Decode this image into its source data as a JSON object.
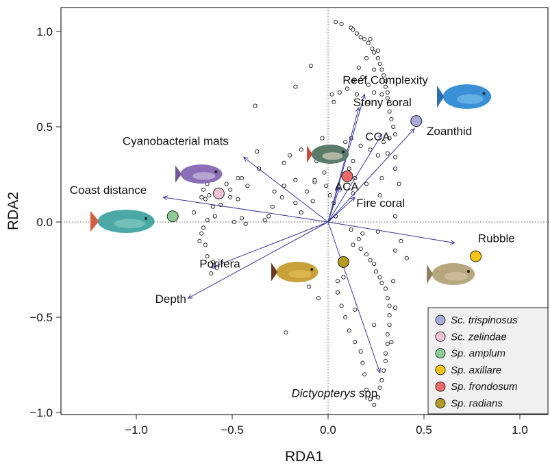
{
  "chart_data": {
    "type": "scatter",
    "title": "",
    "xlabel": "RDA1",
    "ylabel": "RDA2",
    "xlim": [
      -1.37,
      1.14
    ],
    "ylim": [
      -1.07,
      1.12
    ],
    "xticks": [
      -1.0,
      -0.5,
      0.0,
      0.5,
      1.0
    ],
    "yticks": [
      -1.0,
      -0.5,
      0.0,
      0.5,
      1.0
    ],
    "xtick_labels": [
      "−1.0",
      "−0.5",
      "0.0",
      "0.5",
      "1.0"
    ],
    "ytick_labels": [
      "−1.0",
      "−0.5",
      "0.0",
      "0.5",
      "1.0"
    ],
    "reference_lines": {
      "x": 0,
      "y": 0,
      "style": "dotted"
    },
    "vector_color": "#33339a",
    "vectors": [
      {
        "label": "Reef Complexity",
        "x": 0.19,
        "y": 0.67,
        "italic_part": "",
        "rest": ""
      },
      {
        "label": "Stony coral",
        "x": 0.16,
        "y": 0.6,
        "italic_part": "",
        "rest": ""
      },
      {
        "label": "CCA",
        "x": 0.28,
        "y": 0.46,
        "italic_part": "",
        "rest": ""
      },
      {
        "label": "Zoanthid",
        "x": 0.45,
        "y": 0.49,
        "italic_part": "",
        "rest": ""
      },
      {
        "label": "Cyanobacterial mats",
        "x": -0.44,
        "y": 0.34,
        "italic_part": "",
        "rest": ""
      },
      {
        "label": "Coast distance",
        "x": -0.86,
        "y": 0.13,
        "italic_part": "",
        "rest": ""
      },
      {
        "label": "ACA",
        "x": 0.06,
        "y": 0.18,
        "italic_part": "",
        "rest": ""
      },
      {
        "label": "Fire coral",
        "x": 0.14,
        "y": 0.13,
        "italic_part": "",
        "rest": ""
      },
      {
        "label": "Rubble",
        "x": 0.66,
        "y": -0.11,
        "italic_part": "",
        "rest": ""
      },
      {
        "label": "Porifera",
        "x": -0.61,
        "y": -0.24,
        "italic_part": "",
        "rest": ""
      },
      {
        "label": "Depth",
        "x": -0.73,
        "y": -0.4,
        "italic_part": "",
        "rest": ""
      },
      {
        "label": "Dictyopterys spp.",
        "x": 0.27,
        "y": -0.79,
        "italic_part": "Dictyopterys",
        "rest": " spp."
      }
    ],
    "species": [
      {
        "name": "Sc. trispinosus",
        "x": 0.46,
        "y": 0.53,
        "color": "#a7a9d6"
      },
      {
        "name": "Sc. zelindae",
        "x": -0.57,
        "y": 0.15,
        "color": "#edc3d5"
      },
      {
        "name": "Sp. amplum",
        "x": -0.81,
        "y": 0.03,
        "color": "#8fcc95"
      },
      {
        "name": "Sp. axillare",
        "x": 0.77,
        "y": -0.18,
        "color": "#f6c412"
      },
      {
        "name": "Sp. frondosum",
        "x": 0.1,
        "y": 0.24,
        "color": "#ec6a68"
      },
      {
        "name": "Sp. radians",
        "x": 0.08,
        "y": -0.21,
        "color": "#b39a23"
      }
    ],
    "sites": [
      [
        0.04,
        1.05
      ],
      [
        0.07,
        1.04
      ],
      [
        0.12,
        1.02
      ],
      [
        0.13,
        1.01
      ],
      [
        0.15,
        0.99
      ],
      [
        0.17,
        0.97
      ],
      [
        0.19,
        0.96
      ],
      [
        0.21,
        0.94
      ],
      [
        0.23,
        0.91
      ],
      [
        0.24,
        0.89
      ],
      [
        0.26,
        0.86
      ],
      [
        0.27,
        0.83
      ],
      [
        0.28,
        0.8
      ],
      [
        0.29,
        0.77
      ],
      [
        0.3,
        0.74
      ],
      [
        0.3,
        0.71
      ],
      [
        0.31,
        0.68
      ],
      [
        0.31,
        0.65
      ],
      [
        0.32,
        0.62
      ],
      [
        0.32,
        0.58
      ],
      [
        0.33,
        0.54
      ],
      [
        0.34,
        0.5
      ],
      [
        0.35,
        0.46
      ],
      [
        0.22,
        0.96
      ],
      [
        0.26,
        0.9
      ],
      [
        0.2,
        0.86
      ],
      [
        0.24,
        0.8
      ],
      [
        0.16,
        0.81
      ],
      [
        0.18,
        0.76
      ],
      [
        0.21,
        0.72
      ],
      [
        0.13,
        0.74
      ],
      [
        0.1,
        0.7
      ],
      [
        0.15,
        0.67
      ],
      [
        0.06,
        0.68
      ],
      [
        0.02,
        0.67
      ],
      [
        0.03,
        0.63
      ],
      [
        0.21,
        0.63
      ],
      [
        0.24,
        0.68
      ],
      [
        0.28,
        0.67
      ],
      [
        0.32,
        0.44
      ],
      [
        0.29,
        0.42
      ],
      [
        0.31,
        0.36
      ],
      [
        0.35,
        0.34
      ],
      [
        0.26,
        0.35
      ],
      [
        0.22,
        0.38
      ],
      [
        0.17,
        0.4
      ],
      [
        0.12,
        0.44
      ],
      [
        0.09,
        0.42
      ],
      [
        0.07,
        0.38
      ],
      [
        0.13,
        0.32
      ],
      [
        0.11,
        0.28
      ],
      [
        -0.09,
        0.82
      ],
      [
        -0.17,
        0.71
      ],
      [
        -0.38,
        0.61
      ],
      [
        -0.03,
        0.44
      ],
      [
        -0.04,
        0.36
      ],
      [
        -0.06,
        0.32
      ],
      [
        0.14,
        0.23
      ],
      [
        0.2,
        0.2
      ],
      [
        0.13,
        0.15
      ],
      [
        0.27,
        0.14
      ],
      [
        0.03,
        0.1
      ],
      [
        -0.08,
        0.11
      ],
      [
        -0.14,
        0.05
      ],
      [
        -0.17,
        0.1
      ],
      [
        -0.11,
        0.16
      ],
      [
        -0.07,
        0.21
      ],
      [
        -0.07,
        0.22
      ],
      [
        -0.17,
        0.22
      ],
      [
        -0.23,
        0.19
      ],
      [
        -0.24,
        0.13
      ],
      [
        -0.28,
        0.16
      ],
      [
        -0.29,
        0.08
      ],
      [
        -0.31,
        0.03
      ],
      [
        -0.33,
        0.01
      ],
      [
        -0.43,
        -0.01
      ],
      [
        -0.45,
        0.02
      ],
      [
        -0.49,
        0.0
      ],
      [
        -0.47,
        0.12
      ],
      [
        -0.51,
        0.13
      ],
      [
        -0.51,
        0.17
      ],
      [
        -0.47,
        0.23
      ],
      [
        -0.53,
        0.2
      ],
      [
        -0.58,
        0.24
      ],
      [
        -0.6,
        0.22
      ],
      [
        -0.63,
        0.2
      ],
      [
        -0.65,
        0.17
      ],
      [
        -0.66,
        0.13
      ],
      [
        -0.62,
        0.14
      ],
      [
        -0.64,
        0.12
      ],
      [
        -0.6,
        0.08
      ],
      [
        -0.59,
        0.03
      ],
      [
        -0.63,
        0.01
      ],
      [
        -0.65,
        -0.03
      ],
      [
        -0.66,
        -0.06
      ],
      [
        -0.67,
        -0.1
      ],
      [
        -0.64,
        -0.12
      ],
      [
        -0.63,
        -0.18
      ],
      [
        -0.6,
        -0.21
      ],
      [
        -0.58,
        -0.24
      ],
      [
        -0.61,
        -0.27
      ],
      [
        -0.56,
        0.09
      ],
      [
        -0.7,
        0.05
      ],
      [
        -0.37,
        0.37
      ],
      [
        -0.36,
        0.28
      ],
      [
        -0.45,
        0.23
      ],
      [
        -0.42,
        0.19
      ],
      [
        -0.23,
        0.31
      ],
      [
        -0.14,
        0.38
      ],
      [
        -0.2,
        0.35
      ],
      [
        -0.02,
        0.26
      ],
      [
        -0.01,
        0.19
      ],
      [
        0.01,
        0.14
      ],
      [
        0.04,
        0.03
      ],
      [
        0.12,
        -0.04
      ],
      [
        0.16,
        -0.09
      ],
      [
        0.13,
        -0.12
      ],
      [
        0.17,
        -0.14
      ],
      [
        0.2,
        -0.17
      ],
      [
        0.22,
        -0.2
      ],
      [
        0.24,
        -0.22
      ],
      [
        0.25,
        -0.26
      ],
      [
        0.27,
        -0.29
      ],
      [
        0.28,
        -0.32
      ],
      [
        0.3,
        -0.35
      ],
      [
        0.31,
        -0.4
      ],
      [
        0.32,
        -0.44
      ],
      [
        0.32,
        -0.49
      ],
      [
        0.32,
        -0.54
      ],
      [
        0.31,
        -0.59
      ],
      [
        0.31,
        -0.64
      ],
      [
        0.3,
        -0.69
      ],
      [
        0.3,
        -0.73
      ],
      [
        0.29,
        -0.78
      ],
      [
        0.28,
        -0.83
      ],
      [
        0.27,
        -0.87
      ],
      [
        0.26,
        -0.92
      ],
      [
        0.24,
        -0.96
      ],
      [
        0.22,
        -0.93
      ],
      [
        0.2,
        -0.88
      ],
      [
        0.19,
        -0.8
      ],
      [
        0.18,
        -0.74
      ],
      [
        0.17,
        -0.68
      ],
      [
        0.14,
        -0.63
      ],
      [
        0.11,
        -0.57
      ],
      [
        0.09,
        -0.5
      ],
      [
        0.07,
        -0.44
      ],
      [
        0.05,
        -0.37
      ],
      [
        0.05,
        -0.31
      ],
      [
        0.08,
        -0.29
      ],
      [
        0.18,
        -0.06
      ],
      [
        0.26,
        -0.05
      ],
      [
        0.38,
        -0.1
      ],
      [
        0.41,
        -0.19
      ],
      [
        0.35,
        -0.15
      ],
      [
        -0.05,
        -0.4
      ],
      [
        -0.1,
        -0.34
      ],
      [
        -0.13,
        -0.26
      ],
      [
        -0.22,
        -0.58
      ],
      [
        0.14,
        -0.46
      ],
      [
        0.24,
        -0.54
      ],
      [
        0.33,
        -0.63
      ],
      [
        0.35,
        -0.45
      ],
      [
        0.34,
        -0.31
      ],
      [
        0.35,
        0.03
      ],
      [
        0.37,
        0.2
      ],
      [
        0.35,
        0.28
      ],
      [
        0.28,
        0.23
      ]
    ]
  },
  "legend": {
    "items": [
      {
        "label": "Sc. trispinosus",
        "color": "#a7a9d6"
      },
      {
        "label": "Sc. zelindae",
        "color": "#edc3d5"
      },
      {
        "label": "Sp. amplum",
        "color": "#8fcc95"
      },
      {
        "label": "Sp. axillare",
        "color": "#f6c412"
      },
      {
        "label": "Sp. frondosum",
        "color": "#ec6a68"
      },
      {
        "label": "Sp. radians",
        "color": "#b39a23"
      }
    ]
  },
  "fish_photos": [
    {
      "name": "blue-parrotfish-photo",
      "body": "#3b8fd6",
      "fin": "#2a6fb0",
      "accent": "#7fc4f0"
    },
    {
      "name": "purple-parrotfish-photo",
      "body": "#8a6fb8",
      "fin": "#6d5a94",
      "accent": "#d7cbe3"
    },
    {
      "name": "spotted-parrotfish-photo",
      "body": "#5a7a6a",
      "fin": "#c84a3a",
      "accent": "#e7e0c8"
    },
    {
      "name": "teal-parrotfish-photo",
      "body": "#4aa9a6",
      "fin": "#d2603c",
      "accent": "#8fd0c4"
    },
    {
      "name": "yellow-brown-parrotfish-photo",
      "body": "#c9a03a",
      "fin": "#6b3a20",
      "accent": "#e8c45a"
    },
    {
      "name": "pale-parrotfish-photo",
      "body": "#b7a77e",
      "fin": "#8c8260",
      "accent": "#d9c9a8"
    }
  ]
}
